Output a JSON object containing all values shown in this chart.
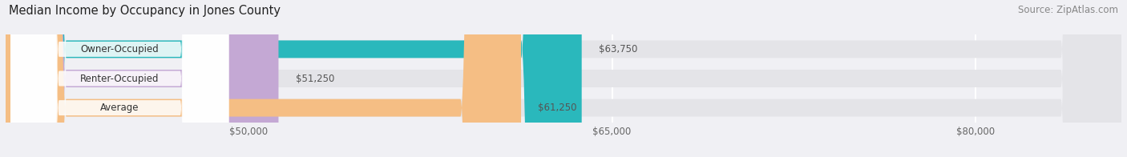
{
  "title": "Median Income by Occupancy in Jones County",
  "source": "Source: ZipAtlas.com",
  "categories": [
    "Owner-Occupied",
    "Renter-Occupied",
    "Average"
  ],
  "values": [
    63750,
    51250,
    61250
  ],
  "bar_colors": [
    "#2ab8bc",
    "#c4a8d4",
    "#f5be84"
  ],
  "bar_bg_color": "#e4e4e8",
  "bar_label_bg": "#ffffff",
  "value_labels": [
    "$63,750",
    "$51,250",
    "$61,250"
  ],
  "tick_labels": [
    "$50,000",
    "$65,000",
    "$80,000"
  ],
  "tick_values": [
    50000,
    65000,
    80000
  ],
  "xmin": 40000,
  "xmax": 86000,
  "title_fontsize": 10.5,
  "source_fontsize": 8.5,
  "label_fontsize": 8.5,
  "bar_label_fontsize": 8.5,
  "tick_fontsize": 8.5,
  "background_color": "#f0f0f4",
  "bar_height": 0.6,
  "grid_color": "#ffffff",
  "text_color": "#333333",
  "value_color": "#555555"
}
